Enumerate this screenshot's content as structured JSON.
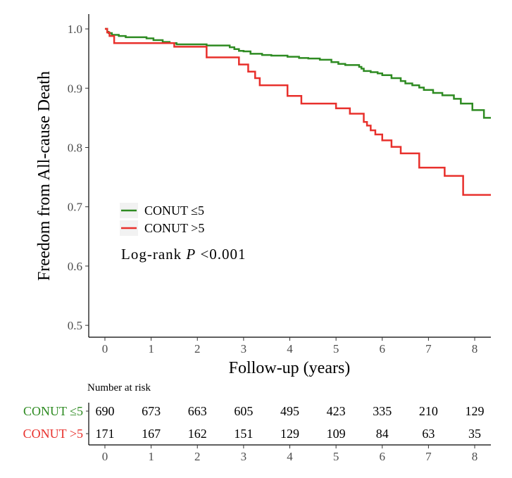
{
  "chart_data": {
    "type": "line",
    "subtype": "kaplan-meier step",
    "xlabel": "Follow-up (years)",
    "ylabel": "Freedom from All-cause Death",
    "xlim": [
      -0.35,
      8.35
    ],
    "ylim": [
      0.48,
      1.025
    ],
    "x_ticks": [
      0,
      1,
      2,
      3,
      4,
      5,
      6,
      7,
      8
    ],
    "y_ticks": [
      0.5,
      0.6,
      0.7,
      0.8,
      0.9,
      1.0
    ],
    "y_tick_labels": [
      "0.5",
      "0.6",
      "0.7",
      "0.8",
      "0.9",
      "1.0"
    ],
    "grid": false,
    "legend": {
      "placement": "center-left",
      "entries": [
        "CONUT ≤5",
        "CONUT >5"
      ]
    },
    "annotation": {
      "prefix": "Log-rank ",
      "p_symbol": "P",
      "suffix": " <0.001"
    },
    "series": [
      {
        "name": "CONUT ≤5",
        "color": "#2e8b22",
        "x": [
          0,
          0.05,
          0.08,
          0.15,
          0.3,
          0.45,
          0.9,
          1.05,
          1.25,
          1.4,
          1.55,
          2.2,
          2.7,
          2.8,
          2.9,
          3.0,
          3.15,
          3.4,
          3.6,
          3.95,
          4.2,
          4.4,
          4.65,
          4.9,
          5.05,
          5.2,
          5.5,
          5.55,
          5.6,
          5.75,
          5.9,
          6.0,
          6.2,
          6.4,
          6.5,
          6.65,
          6.8,
          6.9,
          7.1,
          7.3,
          7.55,
          7.7,
          7.95,
          8.2,
          8.35
        ],
        "y": [
          1.0,
          0.995,
          0.993,
          0.99,
          0.988,
          0.986,
          0.984,
          0.981,
          0.978,
          0.976,
          0.974,
          0.972,
          0.969,
          0.966,
          0.963,
          0.962,
          0.958,
          0.956,
          0.955,
          0.953,
          0.951,
          0.95,
          0.948,
          0.944,
          0.941,
          0.939,
          0.936,
          0.933,
          0.929,
          0.927,
          0.925,
          0.922,
          0.917,
          0.912,
          0.908,
          0.905,
          0.901,
          0.897,
          0.892,
          0.888,
          0.882,
          0.874,
          0.863,
          0.85,
          0.85
        ]
      },
      {
        "name": "CONUT >5",
        "color": "#e8302c",
        "x": [
          0,
          0.05,
          0.1,
          0.2,
          1.5,
          2.2,
          2.9,
          3.1,
          3.25,
          3.35,
          3.95,
          4.25,
          5.0,
          5.3,
          5.6,
          5.67,
          5.75,
          5.85,
          6.0,
          6.2,
          6.4,
          6.8,
          7.35,
          7.75,
          8.35
        ],
        "y": [
          1.0,
          0.994,
          0.988,
          0.976,
          0.97,
          0.952,
          0.94,
          0.928,
          0.917,
          0.905,
          0.887,
          0.874,
          0.866,
          0.857,
          0.843,
          0.837,
          0.829,
          0.822,
          0.812,
          0.801,
          0.79,
          0.766,
          0.752,
          0.72,
          0.72
        ]
      }
    ],
    "risk_table": {
      "title": "Number at risk",
      "times": [
        "0",
        "1",
        "2",
        "3",
        "4",
        "5",
        "6",
        "7",
        "8"
      ],
      "rows": [
        {
          "label": "CONUT ≤5",
          "color": "#2e8b22",
          "values": [
            "690",
            "673",
            "663",
            "605",
            "495",
            "423",
            "335",
            "210",
            "129"
          ]
        },
        {
          "label": "CONUT >5",
          "color": "#e8302c",
          "values": [
            "171",
            "167",
            "162",
            "151",
            "129",
            "109",
            "84",
            "63",
            "35"
          ]
        }
      ]
    }
  }
}
